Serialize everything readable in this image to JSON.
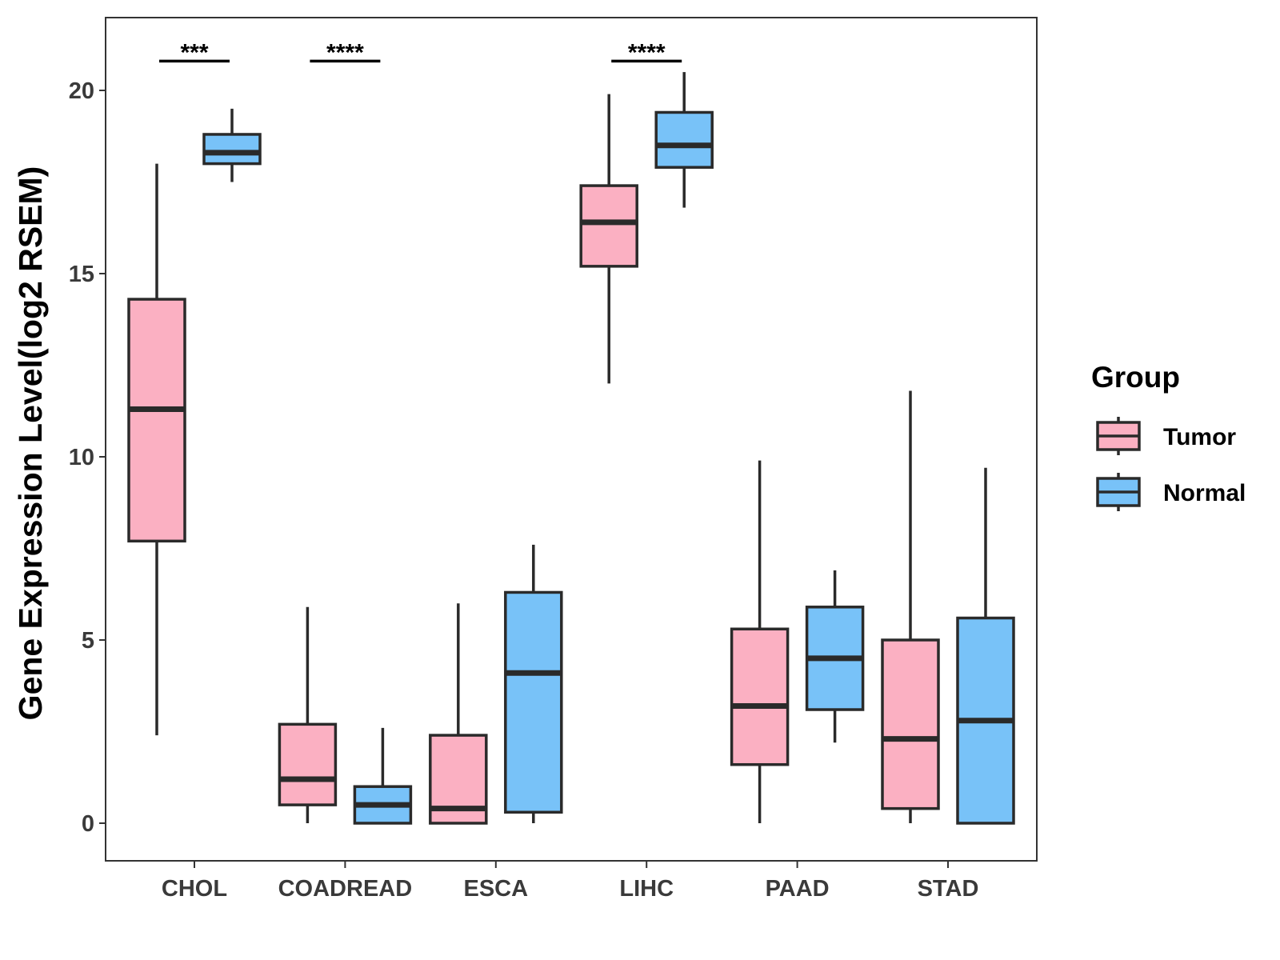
{
  "chart_data": {
    "type": "boxplot",
    "title": "",
    "xlabel": "",
    "ylabel": "Gene Expression Level(log2 RSEM)",
    "ylim": [
      -1,
      22
    ],
    "yticks": [
      0,
      5,
      10,
      15,
      20
    ],
    "categories": [
      "CHOL",
      "COADREAD",
      "ESCA",
      "LIHC",
      "PAAD",
      "STAD"
    ],
    "legend": {
      "title": "Group",
      "position": "right"
    },
    "series": [
      {
        "name": "Tumor",
        "color": "#FBB0C2",
        "boxes": [
          {
            "whisker_low": 2.4,
            "q1": 7.7,
            "median": 11.3,
            "q3": 14.3,
            "whisker_high": 18.0
          },
          {
            "whisker_low": 0.0,
            "q1": 0.5,
            "median": 1.2,
            "q3": 2.7,
            "whisker_high": 5.9
          },
          {
            "whisker_low": 0.0,
            "q1": 0.0,
            "median": 0.4,
            "q3": 2.4,
            "whisker_high": 6.0
          },
          {
            "whisker_low": 12.0,
            "q1": 15.2,
            "median": 16.4,
            "q3": 17.4,
            "whisker_high": 19.9
          },
          {
            "whisker_low": 0.0,
            "q1": 1.6,
            "median": 3.2,
            "q3": 5.3,
            "whisker_high": 9.9
          },
          {
            "whisker_low": 0.0,
            "q1": 0.4,
            "median": 2.3,
            "q3": 5.0,
            "whisker_high": 11.8
          }
        ]
      },
      {
        "name": "Normal",
        "color": "#78C2F8",
        "boxes": [
          {
            "whisker_low": 17.5,
            "q1": 18.0,
            "median": 18.3,
            "q3": 18.8,
            "whisker_high": 19.5
          },
          {
            "whisker_low": 0.0,
            "q1": 0.0,
            "median": 0.5,
            "q3": 1.0,
            "whisker_high": 2.6
          },
          {
            "whisker_low": 0.0,
            "q1": 0.3,
            "median": 4.1,
            "q3": 6.3,
            "whisker_high": 7.6
          },
          {
            "whisker_low": 16.8,
            "q1": 17.9,
            "median": 18.5,
            "q3": 19.4,
            "whisker_high": 20.5
          },
          {
            "whisker_low": 2.2,
            "q1": 3.1,
            "median": 4.5,
            "q3": 5.9,
            "whisker_high": 6.9
          },
          {
            "whisker_low": 0.0,
            "q1": 0.0,
            "median": 2.8,
            "q3": 5.6,
            "whisker_high": 9.7
          }
        ]
      }
    ],
    "significance": [
      {
        "category": "CHOL",
        "label": "***",
        "y": 20.8
      },
      {
        "category": "COADREAD",
        "label": "****",
        "y": 20.8
      },
      {
        "category": "LIHC",
        "label": "****",
        "y": 20.8
      }
    ]
  }
}
